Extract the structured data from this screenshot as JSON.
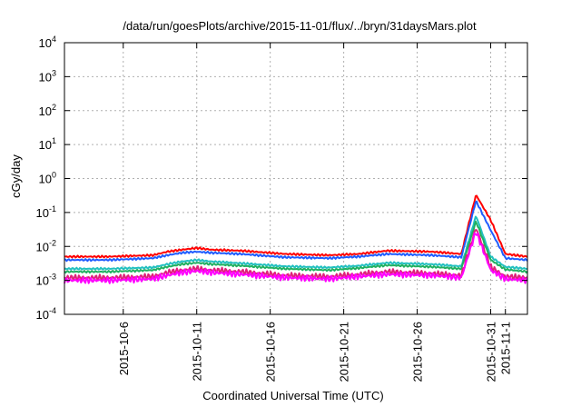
{
  "chart_data": {
    "type": "line",
    "title": "/data/run/goesPlots/archive/2015-11-01/flux/../bryn/31daysMars.plot",
    "xlabel": "Coordinated Universal Time (UTC)",
    "ylabel": "cGy/day",
    "yscale": "log",
    "ylim": [
      0.0001,
      10000
    ],
    "xlim": [
      "2015-10-02",
      "2015-11-02T12:00"
    ],
    "y_ticks": [
      {
        "value": 0.0001,
        "base": "10",
        "exp": "-4"
      },
      {
        "value": 0.001,
        "base": "10",
        "exp": "-3"
      },
      {
        "value": 0.01,
        "base": "10",
        "exp": "-2"
      },
      {
        "value": 0.1,
        "base": "10",
        "exp": "-1"
      },
      {
        "value": 1,
        "base": "10",
        "exp": "0"
      },
      {
        "value": 10,
        "base": "10",
        "exp": "1"
      },
      {
        "value": 100,
        "base": "10",
        "exp": "2"
      },
      {
        "value": 1000,
        "base": "10",
        "exp": "3"
      },
      {
        "value": 10000,
        "base": "10",
        "exp": "4"
      }
    ],
    "x_ticks": [
      "2015-10-6",
      "2015-10-11",
      "2015-10-16",
      "2015-10-21",
      "2015-10-26",
      "2015-10-31",
      "2015-11-1"
    ],
    "x_tick_dates": [
      "2015-10-06",
      "2015-10-11",
      "2015-10-16",
      "2015-10-21",
      "2015-10-26",
      "2015-10-31",
      "2015-11-01"
    ],
    "grid": true,
    "x": [
      "2015-10-02",
      "2015-10-05",
      "2015-10-08",
      "2015-10-09",
      "2015-10-10",
      "2015-10-11",
      "2015-10-12",
      "2015-10-14",
      "2015-10-17",
      "2015-10-20",
      "2015-10-22",
      "2015-10-24",
      "2015-10-27",
      "2015-10-29",
      "2015-10-30",
      "2015-10-31",
      "2015-11-01",
      "2015-11-02T12:00"
    ],
    "series": [
      {
        "color": "#ff0000",
        "values": [
          0.005,
          0.005,
          0.0055,
          0.007,
          0.008,
          0.009,
          0.008,
          0.0075,
          0.006,
          0.0055,
          0.006,
          0.0075,
          0.007,
          0.006,
          0.33,
          0.06,
          0.006,
          0.005
        ]
      },
      {
        "color": "#1f5cff",
        "values": [
          0.004,
          0.004,
          0.0045,
          0.0055,
          0.0065,
          0.007,
          0.0065,
          0.006,
          0.0048,
          0.0045,
          0.005,
          0.006,
          0.0055,
          0.0048,
          0.22,
          0.03,
          0.0045,
          0.004
        ]
      },
      {
        "color": "#22c0c0",
        "values": [
          0.0022,
          0.0022,
          0.0024,
          0.003,
          0.0036,
          0.004,
          0.0036,
          0.0032,
          0.0026,
          0.0024,
          0.0027,
          0.0033,
          0.003,
          0.0026,
          0.08,
          0.005,
          0.0025,
          0.0022
        ]
      },
      {
        "color": "#20b060",
        "values": [
          0.0018,
          0.0018,
          0.002,
          0.0025,
          0.003,
          0.0033,
          0.003,
          0.0027,
          0.0022,
          0.002,
          0.0023,
          0.0028,
          0.0025,
          0.0022,
          0.055,
          0.004,
          0.0021,
          0.0018
        ]
      },
      {
        "color": "#e0207a",
        "values": [
          0.0012,
          0.0012,
          0.0013,
          0.0017,
          0.002,
          0.0022,
          0.002,
          0.0018,
          0.0014,
          0.0013,
          0.0015,
          0.0018,
          0.0016,
          0.0014,
          0.035,
          0.0025,
          0.0013,
          0.0012
        ]
      },
      {
        "color": "#ff00ff",
        "values": [
          0.001,
          0.001,
          0.0011,
          0.0014,
          0.0017,
          0.0019,
          0.0017,
          0.0015,
          0.0012,
          0.0011,
          0.0013,
          0.0015,
          0.0014,
          0.0012,
          0.028,
          0.002,
          0.0011,
          0.001
        ]
      }
    ]
  }
}
